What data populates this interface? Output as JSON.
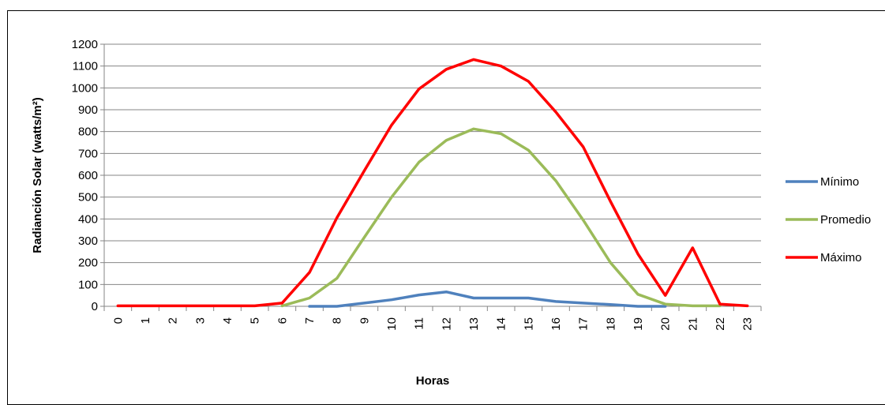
{
  "chart_data": {
    "type": "line",
    "title": "",
    "xlabel": "Horas",
    "ylabel": "Radianción  Solar  (watts/m²)",
    "categories": [
      "0",
      "1",
      "2",
      "3",
      "4",
      "5",
      "6",
      "7",
      "8",
      "9",
      "10",
      "11",
      "12",
      "13",
      "14",
      "15",
      "16",
      "17",
      "18",
      "19",
      "20",
      "21",
      "22",
      "23"
    ],
    "ylim": [
      0,
      1200
    ],
    "yticks": [
      0,
      100,
      200,
      300,
      400,
      500,
      600,
      700,
      800,
      900,
      1000,
      1100,
      1200
    ],
    "grid": true,
    "legend_position": "right",
    "series": [
      {
        "name": "Mínimo",
        "color": "#4f81bd",
        "values": [
          null,
          null,
          null,
          null,
          null,
          null,
          null,
          0,
          0,
          15,
          30,
          52,
          66,
          38,
          38,
          38,
          22,
          15,
          8,
          0,
          0,
          null,
          null,
          null
        ]
      },
      {
        "name": "Promedio",
        "color": "#9bbb59",
        "values": [
          null,
          null,
          null,
          null,
          null,
          null,
          2,
          38,
          128,
          315,
          500,
          660,
          760,
          812,
          790,
          715,
          575,
          395,
          200,
          55,
          10,
          2,
          2,
          null
        ]
      },
      {
        "name": "Máximo",
        "color": "#ff0000",
        "values": [
          2,
          2,
          2,
          2,
          2,
          2,
          15,
          155,
          405,
          620,
          830,
          995,
          1085,
          1130,
          1100,
          1030,
          890,
          730,
          480,
          240,
          50,
          268,
          10,
          2
        ]
      }
    ]
  }
}
